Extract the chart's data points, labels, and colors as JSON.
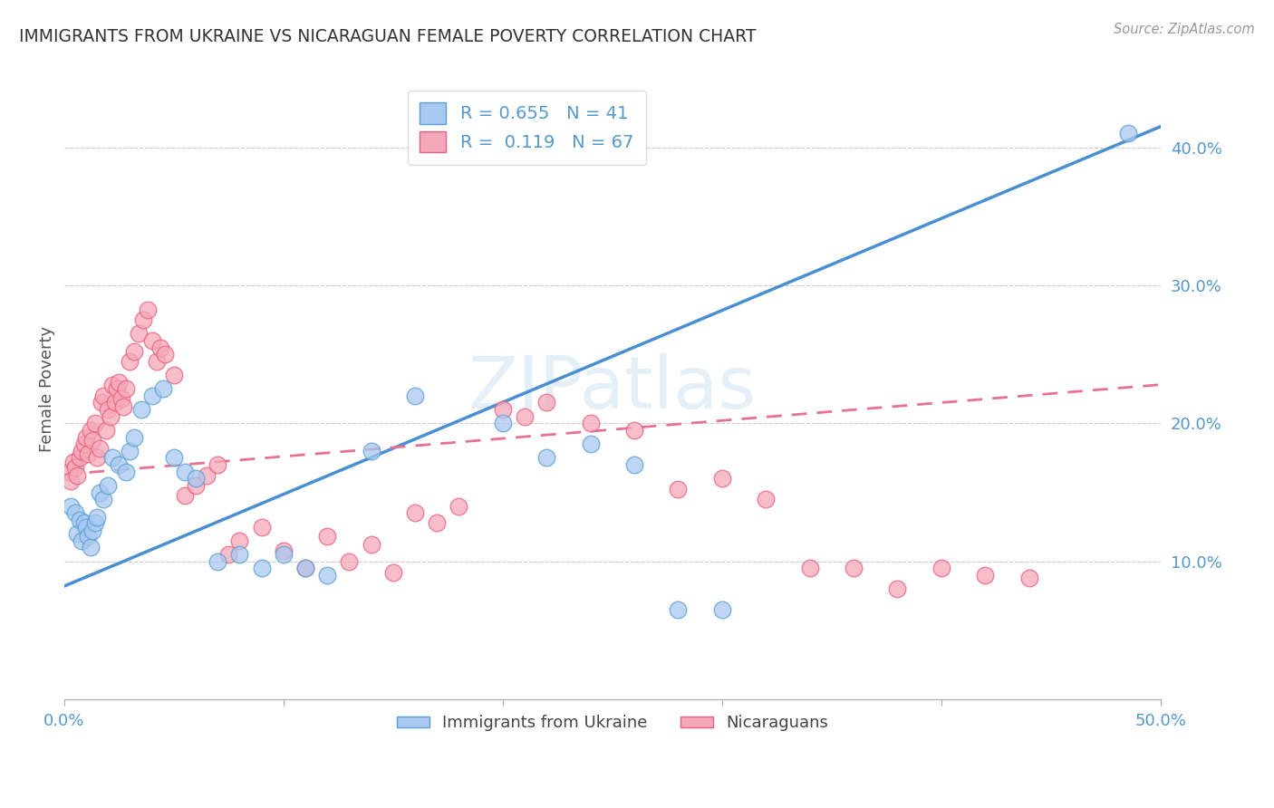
{
  "title": "IMMIGRANTS FROM UKRAINE VS NICARAGUAN FEMALE POVERTY CORRELATION CHART",
  "source": "Source: ZipAtlas.com",
  "ylabel": "Female Poverty",
  "xlim": [
    0.0,
    0.5
  ],
  "ylim": [
    0.0,
    0.45
  ],
  "watermark_text": "ZIPatlas",
  "legend_ukraine_label": "Immigrants from Ukraine",
  "legend_nicaragua_label": "Nicaraguans",
  "ukraine_R": "0.655",
  "ukraine_N": "41",
  "nicaragua_R": "0.119",
  "nicaragua_N": "67",
  "ukraine_color": "#a8c8f0",
  "nicaragua_color": "#f5a8b8",
  "ukraine_edge_color": "#5a9fd4",
  "nicaragua_edge_color": "#e86080",
  "ukraine_line_color": "#4a8fd4",
  "nicaragua_line_color": "#e87090",
  "background_color": "#ffffff",
  "ukraine_line_x0": 0.0,
  "ukraine_line_y0": 0.082,
  "ukraine_line_x1": 0.5,
  "ukraine_line_y1": 0.415,
  "nicaragua_line_x0": 0.0,
  "nicaragua_line_y0": 0.163,
  "nicaragua_line_x1": 0.5,
  "nicaragua_line_y1": 0.228,
  "ukraine_scatter_x": [
    0.003,
    0.005,
    0.006,
    0.007,
    0.008,
    0.009,
    0.01,
    0.011,
    0.012,
    0.013,
    0.014,
    0.015,
    0.016,
    0.018,
    0.02,
    0.022,
    0.025,
    0.028,
    0.03,
    0.032,
    0.035,
    0.04,
    0.045,
    0.05,
    0.055,
    0.06,
    0.07,
    0.08,
    0.09,
    0.1,
    0.11,
    0.12,
    0.14,
    0.16,
    0.2,
    0.22,
    0.24,
    0.26,
    0.28,
    0.3,
    0.485
  ],
  "ukraine_scatter_y": [
    0.14,
    0.135,
    0.12,
    0.13,
    0.115,
    0.128,
    0.125,
    0.118,
    0.11,
    0.122,
    0.128,
    0.132,
    0.15,
    0.145,
    0.155,
    0.175,
    0.17,
    0.165,
    0.18,
    0.19,
    0.21,
    0.22,
    0.225,
    0.175,
    0.165,
    0.16,
    0.1,
    0.105,
    0.095,
    0.105,
    0.095,
    0.09,
    0.18,
    0.22,
    0.2,
    0.175,
    0.185,
    0.17,
    0.065,
    0.065,
    0.41
  ],
  "nicaragua_scatter_x": [
    0.002,
    0.003,
    0.004,
    0.005,
    0.006,
    0.007,
    0.008,
    0.009,
    0.01,
    0.011,
    0.012,
    0.013,
    0.014,
    0.015,
    0.016,
    0.017,
    0.018,
    0.019,
    0.02,
    0.021,
    0.022,
    0.023,
    0.024,
    0.025,
    0.026,
    0.027,
    0.028,
    0.03,
    0.032,
    0.034,
    0.036,
    0.038,
    0.04,
    0.042,
    0.044,
    0.046,
    0.05,
    0.055,
    0.06,
    0.065,
    0.07,
    0.075,
    0.08,
    0.09,
    0.1,
    0.11,
    0.12,
    0.13,
    0.14,
    0.15,
    0.16,
    0.17,
    0.18,
    0.2,
    0.21,
    0.22,
    0.24,
    0.26,
    0.28,
    0.3,
    0.32,
    0.34,
    0.36,
    0.38,
    0.4,
    0.42,
    0.44
  ],
  "nicaragua_scatter_y": [
    0.165,
    0.158,
    0.172,
    0.168,
    0.162,
    0.175,
    0.18,
    0.185,
    0.19,
    0.178,
    0.195,
    0.188,
    0.2,
    0.175,
    0.182,
    0.215,
    0.22,
    0.195,
    0.21,
    0.205,
    0.228,
    0.215,
    0.225,
    0.23,
    0.218,
    0.212,
    0.225,
    0.245,
    0.252,
    0.265,
    0.275,
    0.282,
    0.26,
    0.245,
    0.255,
    0.25,
    0.235,
    0.148,
    0.155,
    0.162,
    0.17,
    0.105,
    0.115,
    0.125,
    0.108,
    0.095,
    0.118,
    0.1,
    0.112,
    0.092,
    0.135,
    0.128,
    0.14,
    0.21,
    0.205,
    0.215,
    0.2,
    0.195,
    0.152,
    0.16,
    0.145,
    0.095,
    0.095,
    0.08,
    0.095,
    0.09,
    0.088
  ]
}
